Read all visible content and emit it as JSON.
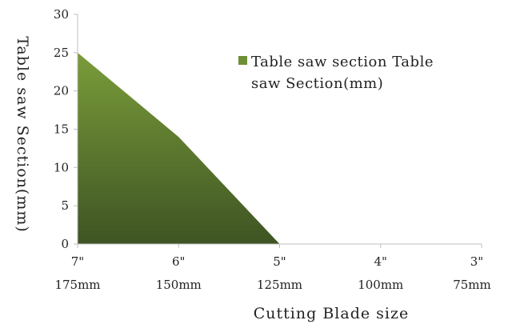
{
  "chart_data": {
    "type": "area",
    "categories": [
      {
        "top": "7\"",
        "bottom": "175mm"
      },
      {
        "top": "6\"",
        "bottom": "150mm"
      },
      {
        "top": "5\"",
        "bottom": "125mm"
      },
      {
        "top": "4\"",
        "bottom": "100mm"
      },
      {
        "top": "3\"",
        "bottom": "75mm"
      }
    ],
    "series": [
      {
        "name": "Table saw section Table saw Section(mm)",
        "values": [
          25,
          14,
          0,
          0,
          0
        ],
        "color_top": "#7a9c3a",
        "color_bottom": "#3e5423"
      }
    ],
    "xlabel": "Cutting Blade size",
    "ylabel": "Table saw Section(mm)",
    "ylim": [
      0,
      30
    ],
    "yticks": [
      "0",
      "5",
      "10",
      "15",
      "20",
      "25",
      "30"
    ],
    "grid": false,
    "legend_position": "top-right",
    "legend": {
      "lines": [
        "Table saw section Table",
        "saw Section(mm)"
      ],
      "swatch_color": "#6e8f35"
    },
    "axis_color": "#bfbfbf"
  }
}
